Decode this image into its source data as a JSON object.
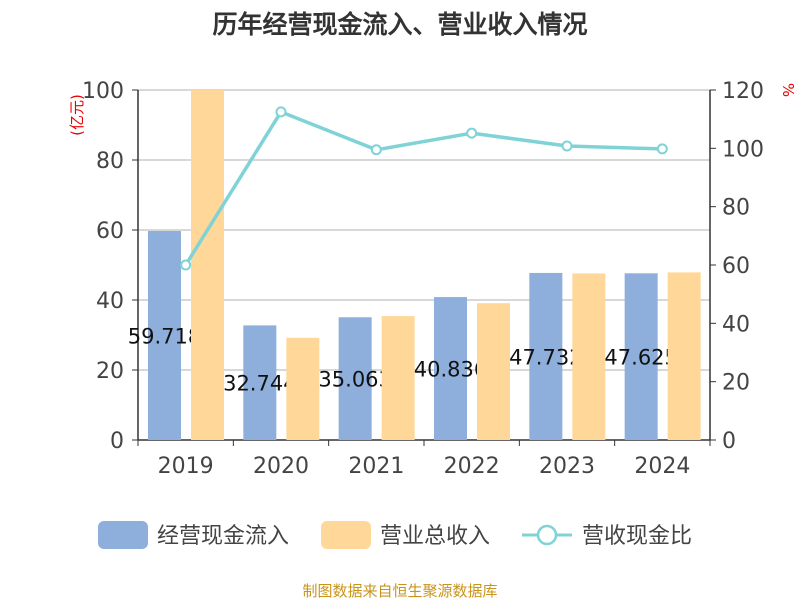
{
  "chart_data": {
    "type": "bar",
    "title": "历年经营现金流入、营业收入情况",
    "categories": [
      "2019",
      "2020",
      "2021",
      "2022",
      "2023",
      "2024"
    ],
    "ylabel_left": "(亿元)",
    "ylabel_right": "%",
    "ylim_left": [
      0,
      100
    ],
    "ylim_right": [
      0,
      120
    ],
    "yticks_left": [
      "0",
      "20",
      "40",
      "60",
      "80",
      "100"
    ],
    "yticks_right": [
      "0",
      "20",
      "40",
      "60",
      "80",
      "100",
      "120"
    ],
    "grid": true,
    "legend_position": "bottom",
    "series": [
      {
        "name": "经营现金流入",
        "type": "bar",
        "axis": "left",
        "color": "#8eaedb",
        "values": [
          59.718,
          32.744,
          35.063,
          40.836,
          47.732,
          47.625
        ],
        "labels": [
          "59.718",
          "32.744",
          "35.063",
          "40.836",
          "47.732",
          "47.625"
        ]
      },
      {
        "name": "营业总收入",
        "type": "bar",
        "axis": "left",
        "color": "#ffd899",
        "values": [
          100,
          29.2,
          35.4,
          39.1,
          47.6,
          47.9
        ]
      },
      {
        "name": "营收现金比",
        "type": "line",
        "axis": "right",
        "color": "#7fd3d6",
        "values": [
          60,
          112.5,
          99.5,
          105.2,
          100.8,
          99.8
        ]
      }
    ],
    "source": "制图数据来自恒生聚源数据库"
  }
}
